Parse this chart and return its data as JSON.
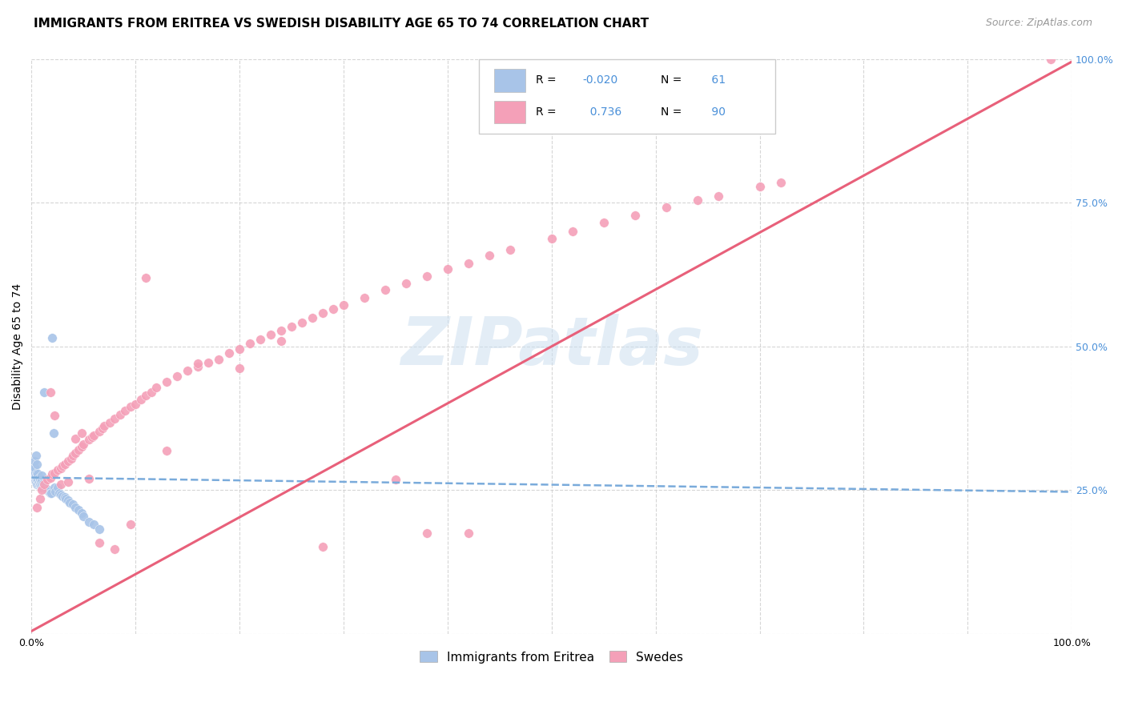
{
  "title": "IMMIGRANTS FROM ERITREA VS SWEDISH DISABILITY AGE 65 TO 74 CORRELATION CHART",
  "source": "Source: ZipAtlas.com",
  "ylabel": "Disability Age 65 to 74",
  "legend_eritrea_label": "Immigrants from Eritrea",
  "legend_swedes_label": "Swedes",
  "watermark": "ZIPatlas",
  "xlim": [
    0.0,
    1.0
  ],
  "ylim": [
    0.0,
    1.0
  ],
  "xticks": [
    0.0,
    0.1,
    0.2,
    0.3,
    0.4,
    0.5,
    0.6,
    0.7,
    0.8,
    0.9,
    1.0
  ],
  "xticklabels": [
    "0.0%",
    "",
    "",
    "",
    "",
    "",
    "",
    "",
    "",
    "",
    "100.0%"
  ],
  "yticks": [
    0.0,
    0.25,
    0.5,
    0.75,
    1.0
  ],
  "yticklabels": [
    "",
    "25.0%",
    "50.0%",
    "75.0%",
    "100.0%"
  ],
  "grid_color": "#cccccc",
  "background_color": "#ffffff",
  "eritrea_color": "#a8c4e8",
  "swedes_color": "#f4a0b8",
  "eritrea_line_color": "#7aabdb",
  "swedes_line_color": "#e8607a",
  "eritrea_R": "-0.020",
  "eritrea_N": "61",
  "swedes_R": "0.736",
  "swedes_N": "90",
  "eritrea_trend": [
    0.0,
    1.0,
    0.272,
    0.247
  ],
  "swedes_trend": [
    0.0,
    1.0,
    0.005,
    0.995
  ],
  "eritrea_points_x": [
    0.002,
    0.002,
    0.003,
    0.003,
    0.003,
    0.003,
    0.003,
    0.004,
    0.004,
    0.004,
    0.004,
    0.005,
    0.005,
    0.005,
    0.005,
    0.005,
    0.006,
    0.006,
    0.006,
    0.007,
    0.007,
    0.007,
    0.008,
    0.008,
    0.009,
    0.009,
    0.01,
    0.01,
    0.01,
    0.01,
    0.011,
    0.011,
    0.012,
    0.013,
    0.014,
    0.015,
    0.016,
    0.017,
    0.018,
    0.019,
    0.02,
    0.021,
    0.022,
    0.023,
    0.025,
    0.027,
    0.028,
    0.03,
    0.032,
    0.033,
    0.035,
    0.037,
    0.04,
    0.042,
    0.045,
    0.048,
    0.05,
    0.055,
    0.06,
    0.065,
    0.012
  ],
  "eritrea_points_y": [
    0.275,
    0.285,
    0.27,
    0.275,
    0.28,
    0.29,
    0.3,
    0.265,
    0.27,
    0.275,
    0.31,
    0.26,
    0.268,
    0.273,
    0.28,
    0.295,
    0.262,
    0.268,
    0.278,
    0.26,
    0.265,
    0.272,
    0.26,
    0.268,
    0.258,
    0.265,
    0.255,
    0.262,
    0.268,
    0.275,
    0.255,
    0.262,
    0.258,
    0.255,
    0.252,
    0.25,
    0.25,
    0.248,
    0.245,
    0.245,
    0.515,
    0.35,
    0.255,
    0.248,
    0.255,
    0.245,
    0.242,
    0.24,
    0.238,
    0.235,
    0.232,
    0.228,
    0.225,
    0.22,
    0.215,
    0.21,
    0.205,
    0.195,
    0.19,
    0.182,
    0.42
  ],
  "swedes_points_x": [
    0.005,
    0.008,
    0.01,
    0.012,
    0.015,
    0.018,
    0.02,
    0.022,
    0.025,
    0.028,
    0.03,
    0.032,
    0.035,
    0.038,
    0.04,
    0.042,
    0.045,
    0.048,
    0.05,
    0.055,
    0.058,
    0.06,
    0.065,
    0.068,
    0.07,
    0.075,
    0.08,
    0.085,
    0.09,
    0.095,
    0.1,
    0.105,
    0.11,
    0.115,
    0.12,
    0.13,
    0.14,
    0.15,
    0.16,
    0.17,
    0.18,
    0.19,
    0.2,
    0.21,
    0.22,
    0.23,
    0.24,
    0.25,
    0.26,
    0.27,
    0.28,
    0.29,
    0.3,
    0.32,
    0.34,
    0.36,
    0.38,
    0.4,
    0.42,
    0.44,
    0.46,
    0.5,
    0.52,
    0.55,
    0.58,
    0.61,
    0.64,
    0.66,
    0.7,
    0.72,
    0.018,
    0.022,
    0.028,
    0.035,
    0.042,
    0.048,
    0.055,
    0.065,
    0.08,
    0.095,
    0.11,
    0.13,
    0.16,
    0.2,
    0.24,
    0.28,
    0.35,
    0.38,
    0.42,
    0.98
  ],
  "swedes_points_y": [
    0.22,
    0.235,
    0.25,
    0.26,
    0.268,
    0.272,
    0.278,
    0.28,
    0.285,
    0.288,
    0.292,
    0.295,
    0.3,
    0.305,
    0.31,
    0.315,
    0.32,
    0.325,
    0.33,
    0.338,
    0.342,
    0.345,
    0.352,
    0.358,
    0.362,
    0.368,
    0.375,
    0.382,
    0.388,
    0.395,
    0.4,
    0.408,
    0.415,
    0.42,
    0.428,
    0.438,
    0.448,
    0.458,
    0.465,
    0.472,
    0.478,
    0.488,
    0.495,
    0.505,
    0.512,
    0.52,
    0.528,
    0.535,
    0.542,
    0.55,
    0.558,
    0.565,
    0.572,
    0.585,
    0.598,
    0.61,
    0.622,
    0.635,
    0.645,
    0.658,
    0.668,
    0.688,
    0.7,
    0.715,
    0.728,
    0.742,
    0.755,
    0.762,
    0.778,
    0.785,
    0.42,
    0.38,
    0.26,
    0.265,
    0.34,
    0.35,
    0.27,
    0.158,
    0.148,
    0.19,
    0.62,
    0.318,
    0.47,
    0.462,
    0.51,
    0.152,
    0.268,
    0.175,
    0.175,
    1.0
  ],
  "title_fontsize": 11,
  "axis_label_fontsize": 10,
  "tick_fontsize": 9,
  "legend_fontsize": 10,
  "source_fontsize": 9
}
